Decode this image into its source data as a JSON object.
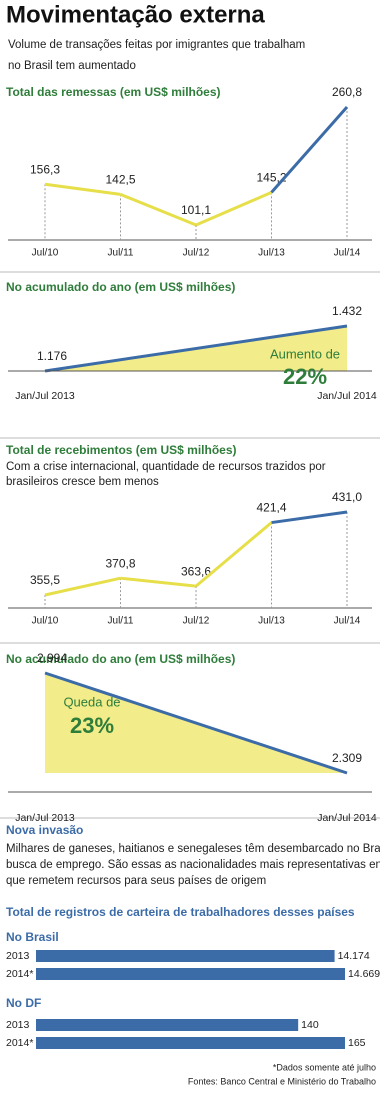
{
  "header": {
    "title": "Movimentação externa",
    "subtitle": [
      "Volume de transações feitas por imigrantes que trabalham",
      "no Brasil tem aumentado"
    ]
  },
  "chart_data": [
    {
      "type": "line",
      "title": "Total das remessas (em US$ milhões)",
      "categories": [
        "Jul/10",
        "Jul/11",
        "Jul/12",
        "Jul/13",
        "Jul/14"
      ],
      "values": [
        156.3,
        142.5,
        101.1,
        145.2,
        260.8
      ],
      "value_labels": [
        "156,3",
        "142,5",
        "101,1",
        "145,2",
        "260,8"
      ],
      "segment_colors": [
        "#e6df4a",
        "#e6df4a",
        "#e6df4a",
        "#3c6ca8"
      ]
    },
    {
      "type": "area",
      "title": "No acumulado do ano (em US$ milhões)",
      "categories": [
        "Jan/Jul 2013",
        "Jan/Jul 2014"
      ],
      "values": [
        1176,
        1432
      ],
      "value_labels": [
        "1.176",
        "1.432"
      ],
      "color": "#3c6ca8",
      "fill": "#f2ec8a",
      "annotation": [
        "Aumento de",
        "22%"
      ]
    },
    {
      "type": "line",
      "title": "Total de recebimentos (em US$ milhões)",
      "subtitle": [
        "Com a crise internacional, quantidade de recursos trazidos por",
        "brasileiros cresce bem menos"
      ],
      "categories": [
        "Jul/10",
        "Jul/11",
        "Jul/12",
        "Jul/13",
        "Jul/14"
      ],
      "values": [
        355.5,
        370.8,
        363.6,
        421.4,
        431.0
      ],
      "value_labels": [
        "355,5",
        "370,8",
        "363,6",
        "421,4",
        "431,0"
      ],
      "segment_colors": [
        "#e6df4a",
        "#e6df4a",
        "#e6df4a",
        "#3c6ca8"
      ]
    },
    {
      "type": "area",
      "title": "No acumulado do ano (em US$ milhões)",
      "categories": [
        "Jan/Jul 2013",
        "Jan/Jul 2014"
      ],
      "values": [
        2994,
        2309
      ],
      "value_labels": [
        "2.994",
        "2.309"
      ],
      "color": "#3c6ca8",
      "fill": "#f2ec8a",
      "annotation": [
        "Queda de",
        "23%"
      ]
    },
    {
      "type": "hbar",
      "title": "No Brasil",
      "categories": [
        "2013",
        "2014*"
      ],
      "values": [
        14174,
        14669
      ],
      "value_labels": [
        "14.174",
        "14.669"
      ],
      "color": "#3c6ca8"
    },
    {
      "type": "hbar",
      "title": "No DF",
      "categories": [
        "2013",
        "2014*"
      ],
      "values": [
        140,
        165
      ],
      "color": "#3c6ca8"
    }
  ],
  "section": {
    "title": "Nova invasão",
    "text": [
      "Milhares de ganeses, haitianos e senegaleses têm desembarcado no Brasil em",
      "busca de emprego. São essas as nacionalidades mais representativas entre as",
      "que remetem recursos para seus países de origem"
    ],
    "chart_title": "Total de registros de carteira de trabalhadores desses países"
  },
  "notes": [
    "*Dados somente até julho",
    "Fontes: Banco Central e Ministério do Trabalho"
  ]
}
